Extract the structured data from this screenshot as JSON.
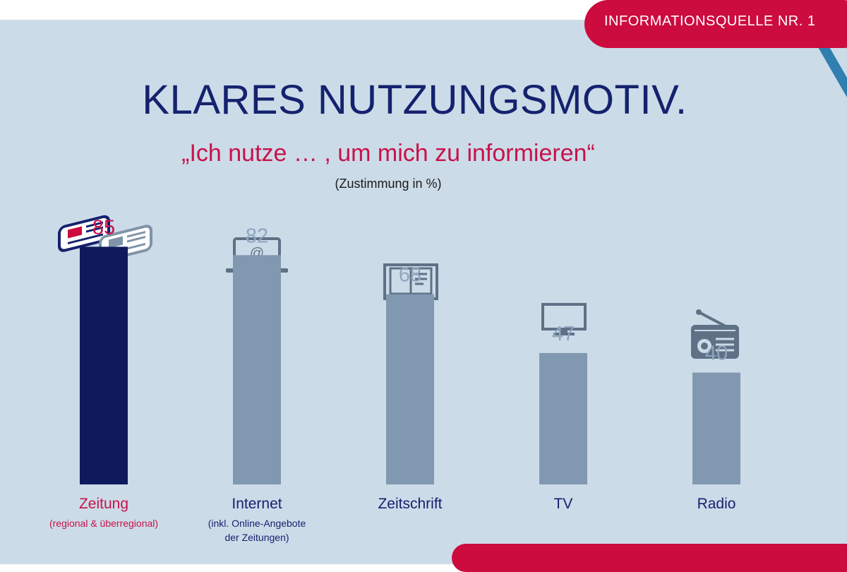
{
  "badge": {
    "label": "INFORMATIONSQUELLE NR. 1"
  },
  "header": {
    "title": "KLARES NUTZUNGSMOTIV.",
    "subtitle": "„Ich nutze … , um mich zu informieren“",
    "unit_note": "(Zustimmung in %)"
  },
  "colors": {
    "highlight_bar": "#0e1a5c",
    "regular_bar": "#8199b0",
    "highlight_text": "#c8124a",
    "regular_value_text": "#8fa6bf",
    "label_text": "#14226e",
    "accent_red": "#cc0b3e",
    "accent_blue": "#2f7fb0",
    "background": "#ccdbe8"
  },
  "icons": [
    "newspaper-icon",
    "laptop-icon",
    "book-icon",
    "tv-icon",
    "radio-icon"
  ],
  "chart_data": {
    "type": "bar",
    "categories": [
      "Zeitung",
      "Internet",
      "Zeitschrift",
      "TV",
      "Radio"
    ],
    "category_notes": [
      "(regional & überregional)",
      "(inkl. Online-Angebote der Zeitungen)",
      "",
      "",
      ""
    ],
    "values": [
      85,
      82,
      68,
      47,
      40
    ],
    "ylim": [
      0,
      100
    ],
    "highlight_index": 0,
    "grid": false,
    "legend": "none"
  }
}
